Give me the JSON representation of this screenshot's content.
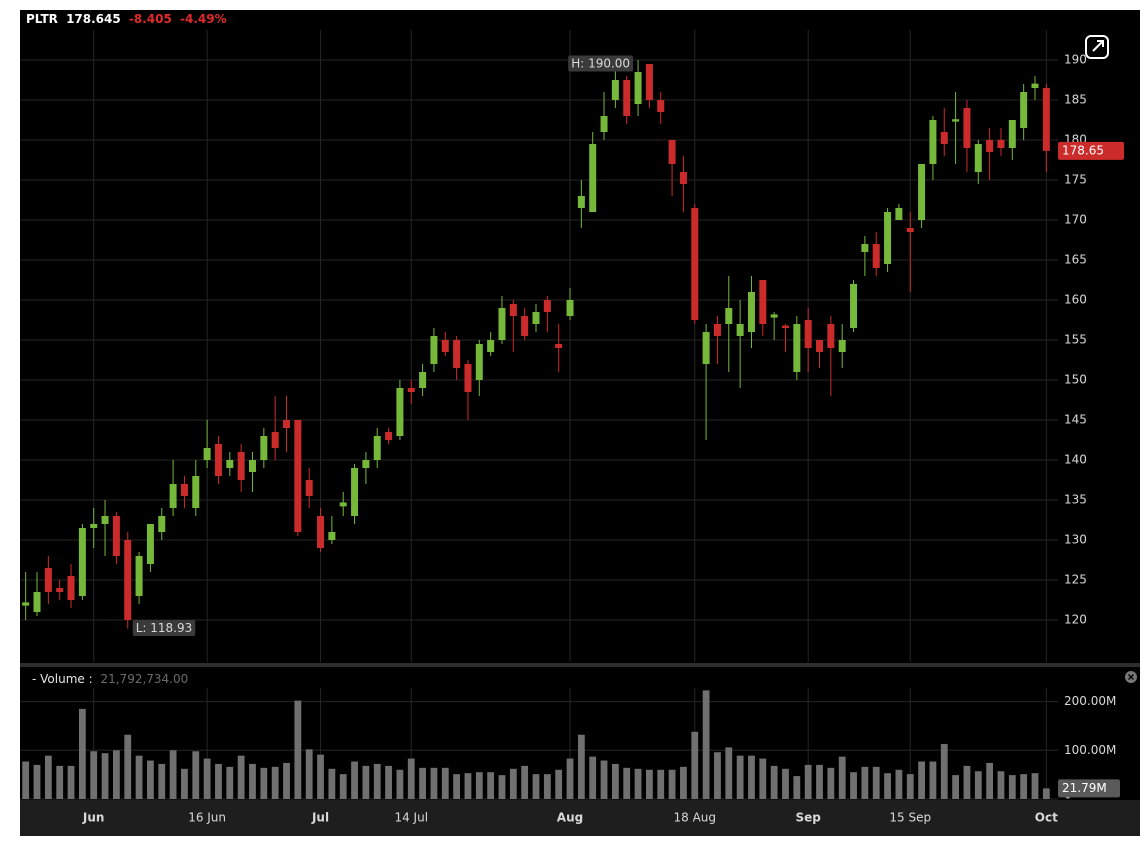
{
  "chart_data": [
    {
      "type": "candlestick",
      "title": "PLTR",
      "quote": [
        "178.645",
        "-8.405",
        "-4.49%"
      ],
      "categories": [
        null,
        null,
        null,
        null,
        null,
        null,
        "Jun",
        null,
        null,
        null,
        null,
        null,
        null,
        null,
        null,
        null,
        "16 Jun",
        null,
        null,
        null,
        null,
        null,
        null,
        null,
        null,
        null,
        "Jul",
        null,
        null,
        null,
        null,
        null,
        null,
        null,
        "14 Jul",
        null,
        null,
        null,
        null,
        null,
        null,
        null,
        null,
        null,
        null,
        null,
        null,
        null,
        "Aug",
        null,
        null,
        null,
        null,
        null,
        null,
        null,
        null,
        null,
        null,
        "18 Aug",
        null,
        null,
        null,
        null,
        null,
        null,
        null,
        null,
        null,
        "Sep",
        null,
        null,
        null,
        null,
        null,
        null,
        null,
        null,
        "15 Sep",
        null,
        null,
        null,
        null,
        null,
        null,
        null,
        null,
        null,
        null,
        null,
        "Oct"
      ],
      "open": [
        121.8,
        121,
        126.5,
        124,
        125.5,
        123,
        131.5,
        132,
        133,
        130,
        123,
        127,
        131,
        134,
        137,
        134,
        140,
        142,
        139,
        141,
        138.5,
        140,
        143.5,
        145,
        145,
        137.5,
        133,
        130,
        134.2,
        133,
        139,
        140,
        143.5,
        143,
        149,
        149,
        152,
        155,
        155,
        152,
        150,
        153.5,
        155,
        159.5,
        158,
        157,
        160,
        154.5,
        158,
        171.5,
        171,
        181,
        185,
        187.5,
        184.5,
        189.5,
        185,
        180,
        176,
        171.5,
        152,
        157,
        157,
        155.5,
        156,
        162.5,
        157.8,
        156.8,
        151,
        157.5,
        155,
        157,
        153.5,
        156.5,
        166,
        167,
        164.5,
        170,
        169,
        170,
        177,
        181,
        182.3,
        184,
        176,
        180,
        180,
        179,
        181.5,
        186.5,
        186.5
      ],
      "high": [
        126,
        126,
        128,
        125,
        127,
        132,
        134,
        135,
        133.5,
        131,
        128.5,
        132,
        134,
        140,
        138,
        140,
        145,
        143,
        141,
        142,
        141,
        144,
        148,
        148,
        145,
        139,
        134,
        133,
        136,
        139.5,
        141,
        144,
        144,
        150,
        150,
        152,
        156.5,
        156,
        155.5,
        152.5,
        155,
        156,
        160.5,
        160,
        159,
        159.5,
        160.5,
        157,
        161.5,
        175,
        181,
        186,
        189,
        188,
        190,
        189.5,
        186,
        180,
        178,
        172,
        157,
        158,
        163,
        160,
        163,
        162.5,
        158.5,
        157,
        158,
        159,
        155,
        158,
        157,
        162.5,
        168,
        168.5,
        171.5,
        172,
        171,
        177,
        183,
        184,
        186,
        185,
        180,
        181.5,
        181.5,
        182.5,
        187,
        188,
        187
      ],
      "low": [
        120,
        120.5,
        122,
        122.5,
        121.5,
        122.5,
        129,
        128,
        127,
        118.93,
        122,
        126,
        130,
        133,
        134,
        133,
        139,
        137,
        138,
        136,
        136,
        139,
        140,
        141,
        130.5,
        134,
        128.5,
        129.5,
        133,
        132,
        137,
        139,
        142,
        142.5,
        147,
        148,
        151,
        153,
        150,
        145,
        148,
        153,
        154.5,
        153.5,
        155,
        156,
        156,
        151,
        157.5,
        169,
        171,
        180,
        184,
        182,
        183,
        184,
        182,
        173,
        171,
        157,
        142.5,
        152,
        151,
        149,
        154,
        155.5,
        155,
        153.5,
        150,
        151,
        151.5,
        148,
        151.5,
        156,
        163,
        163,
        163.5,
        170,
        161,
        169,
        175,
        178,
        177,
        176,
        174.5,
        175,
        178,
        177.5,
        180,
        185,
        176
      ],
      "close": [
        122.2,
        123.5,
        123.5,
        123.5,
        122.5,
        131.5,
        132,
        133,
        128,
        120,
        128,
        132,
        133,
        137,
        135.5,
        138,
        141.5,
        138,
        140,
        137.5,
        140,
        143,
        141.5,
        144,
        131,
        135.5,
        129,
        131,
        134.7,
        139,
        140,
        143,
        142.5,
        149,
        148.5,
        151,
        155.5,
        153.5,
        151.5,
        148.5,
        154.5,
        155,
        159,
        158,
        155.5,
        158.5,
        158.5,
        154,
        160,
        173,
        179.5,
        183,
        187.5,
        183,
        188.5,
        185,
        183.5,
        177,
        174.5,
        157.5,
        156,
        155.5,
        159,
        157,
        161,
        157,
        158.2,
        156.5,
        157,
        154,
        153.5,
        154,
        155,
        162,
        167,
        164,
        171,
        171.5,
        168.5,
        177,
        182.5,
        179.5,
        182.6,
        179,
        179.5,
        178.5,
        179,
        182.5,
        186,
        187.05,
        178.645
      ],
      "up_color": "#76b83a",
      "down_color": "#cc2b2b",
      "ylim": [
        115,
        193.75
      ],
      "yticks": [
        120,
        125,
        130,
        135,
        140,
        145,
        150,
        155,
        160,
        165,
        170,
        175,
        180,
        185,
        190
      ],
      "grid": true,
      "high_label": "H: 190.00",
      "low_label": "L: 118.93",
      "last_label": "178.65"
    },
    {
      "type": "bar",
      "title": "- Volume :",
      "subtitle": "21,792,734.00",
      "values": [
        77000000,
        70000000,
        89000000,
        68000000,
        68000000,
        185000000,
        98000000,
        94000000,
        100000000,
        132000000,
        89000000,
        79000000,
        72000000,
        100000000,
        62000000,
        98000000,
        83000000,
        72000000,
        66000000,
        89000000,
        72000000,
        64000000,
        66000000,
        74000000,
        202000000,
        102000000,
        91000000,
        62000000,
        51000000,
        77000000,
        68000000,
        72000000,
        68000000,
        60000000,
        83000000,
        64000000,
        64000000,
        64000000,
        51000000,
        53000000,
        55000000,
        55000000,
        49000000,
        62000000,
        68000000,
        51000000,
        51000000,
        60000000,
        83000000,
        132000000,
        87000000,
        79000000,
        72000000,
        64000000,
        62000000,
        60000000,
        60000000,
        60000000,
        66000000,
        138000000,
        223000000,
        96000000,
        106000000,
        89000000,
        89000000,
        83000000,
        68000000,
        62000000,
        47000000,
        70000000,
        70000000,
        64000000,
        87000000,
        55000000,
        66000000,
        66000000,
        53000000,
        60000000,
        51000000,
        77000000,
        77000000,
        113000000,
        49000000,
        68000000,
        57000000,
        74000000,
        57000000,
        49000000,
        51000000,
        53000000,
        21792734
      ],
      "color": "#707070",
      "ylim": [
        0,
        232000000
      ],
      "yticks": [
        0,
        {
          "value": 100000000,
          "label": "100.00M"
        },
        {
          "value": 200000000,
          "label": "200.00M"
        }
      ],
      "grid": true,
      "last_label": "21.79M"
    }
  ]
}
